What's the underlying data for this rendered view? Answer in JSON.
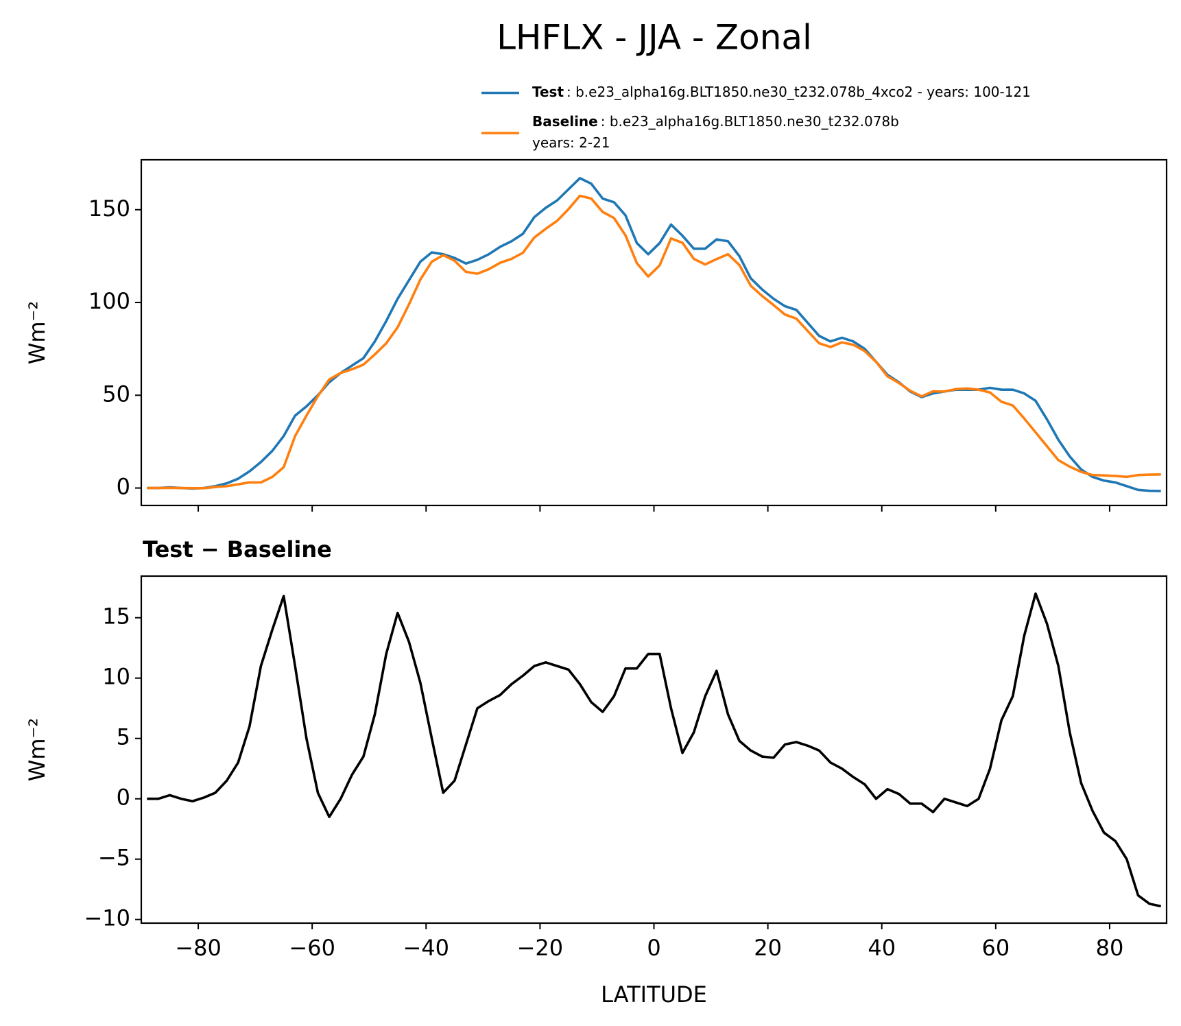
{
  "title": "LHFLX - JJA - Zonal",
  "chart_data": [
    {
      "type": "line",
      "ylabel": "Wm⁻²",
      "x": [
        -89,
        -87,
        -85,
        -83,
        -81,
        -79,
        -77,
        -75,
        -73,
        -71,
        -69,
        -67,
        -65,
        -63,
        -61,
        -59,
        -57,
        -55,
        -53,
        -51,
        -49,
        -47,
        -45,
        -43,
        -41,
        -39,
        -37,
        -35,
        -33,
        -31,
        -29,
        -27,
        -25,
        -23,
        -21,
        -19,
        -17,
        -15,
        -13,
        -11,
        -9,
        -7,
        -5,
        -3,
        -1,
        1,
        3,
        5,
        7,
        9,
        11,
        13,
        15,
        17,
        19,
        21,
        23,
        25,
        27,
        29,
        31,
        33,
        35,
        37,
        39,
        41,
        43,
        45,
        47,
        49,
        51,
        53,
        55,
        57,
        59,
        61,
        63,
        65,
        67,
        69,
        71,
        73,
        75,
        77,
        79,
        81,
        83,
        85,
        87,
        89
      ],
      "xlim": [
        -90,
        90
      ],
      "ylim": [
        -9.4,
        176.9
      ],
      "yticks": [
        0,
        50,
        100,
        150
      ],
      "legend": "upper right",
      "series": [
        {
          "name": "Test",
          "color": "#1f77b4",
          "description": [
            ": b.e23_alpha16g.BLT1850.ne30_t232.078b_4xco2 - years: 100-121"
          ],
          "values": [
            0,
            0,
            0.4,
            0,
            -0.3,
            0,
            1,
            2.5,
            5,
            9,
            14,
            20,
            28,
            39,
            44,
            50,
            57,
            62,
            66,
            70,
            79,
            90,
            102,
            112,
            122,
            127,
            126,
            124,
            121,
            123,
            126,
            130,
            133,
            137,
            146,
            151,
            155,
            161,
            167,
            164,
            156,
            154,
            147,
            132,
            126,
            132,
            142,
            136,
            129,
            129,
            134,
            133,
            125,
            113,
            107,
            102,
            98,
            96,
            89,
            82,
            79,
            81,
            79,
            75,
            68,
            61,
            57,
            52,
            49,
            51,
            52,
            53,
            53,
            53,
            54,
            53,
            53,
            51,
            47,
            37,
            26,
            17,
            10,
            6,
            4,
            3,
            1,
            -1,
            -1.5,
            -1.6
          ]
        },
        {
          "name": "Baseline",
          "color": "#ff7f0e",
          "description": [
            ": b.e23_alpha16g.BLT1850.ne30_t232.078b",
            "years: 2-21"
          ],
          "values": [
            0,
            0,
            0.1,
            0,
            -0.1,
            -0.1,
            0.5,
            1,
            2,
            3,
            3,
            6,
            11.2,
            28,
            39,
            49.5,
            58.5,
            62,
            64,
            66.5,
            72,
            78,
            86.6,
            99,
            112.4,
            122,
            125.5,
            122.5,
            116.5,
            115.5,
            117.9,
            121.4,
            123.5,
            126.8,
            135,
            139.7,
            144,
            150.3,
            157.5,
            156,
            148.8,
            145.5,
            136.2,
            121.2,
            114,
            120,
            134.5,
            132.2,
            123.5,
            120.5,
            123.4,
            126,
            120.2,
            109,
            103.5,
            98.6,
            93.5,
            91.3,
            84.6,
            78,
            76,
            78.5,
            77.2,
            73.8,
            68,
            60.2,
            56.6,
            52.4,
            49.4,
            52.1,
            52,
            53.3,
            53.6,
            53,
            51.5,
            46.5,
            44.5,
            37.5,
            30,
            22.5,
            15,
            11.5,
            8.7,
            7,
            6.8,
            6.5,
            6,
            7,
            7.2,
            7.3
          ]
        }
      ]
    },
    {
      "type": "line",
      "title": "Test − Baseline",
      "ylabel": "Wm⁻²",
      "xlabel": "LATITUDE",
      "x": [
        -89,
        -87,
        -85,
        -83,
        -81,
        -79,
        -77,
        -75,
        -73,
        -71,
        -69,
        -67,
        -65,
        -63,
        -61,
        -59,
        -57,
        -55,
        -53,
        -51,
        -49,
        -47,
        -45,
        -43,
        -41,
        -39,
        -37,
        -35,
        -33,
        -31,
        -29,
        -27,
        -25,
        -23,
        -21,
        -19,
        -17,
        -15,
        -13,
        -11,
        -9,
        -7,
        -5,
        -3,
        -1,
        1,
        3,
        5,
        7,
        9,
        11,
        13,
        15,
        17,
        19,
        21,
        23,
        25,
        27,
        29,
        31,
        33,
        35,
        37,
        39,
        41,
        43,
        45,
        47,
        49,
        51,
        53,
        55,
        57,
        59,
        61,
        63,
        65,
        67,
        69,
        71,
        73,
        75,
        77,
        79,
        81,
        83,
        85,
        87,
        89
      ],
      "xlim": [
        -90,
        90
      ],
      "ylim": [
        -10.3,
        18.45
      ],
      "xticks": [
        {
          "value": -80,
          "label": "−80"
        },
        {
          "value": -60,
          "label": "−60"
        },
        {
          "value": -40,
          "label": "−40"
        },
        {
          "value": -20,
          "label": "−20"
        },
        0,
        20,
        40,
        60,
        80
      ],
      "yticks": [
        {
          "value": -10,
          "label": "−10"
        },
        {
          "value": -5,
          "label": "−5"
        },
        0,
        5,
        10,
        15
      ],
      "series": [
        {
          "color": "#000000",
          "values": [
            0,
            0,
            0.3,
            0,
            -0.2,
            0.1,
            0.5,
            1.5,
            3,
            6,
            11,
            14,
            16.8,
            11,
            5,
            0.5,
            -1.5,
            0,
            2,
            3.5,
            7,
            12,
            15.4,
            13,
            9.6,
            5,
            0.5,
            1.5,
            4.5,
            7.5,
            8.1,
            8.6,
            9.5,
            10.2,
            11,
            11.3,
            11,
            10.7,
            9.5,
            8,
            7.2,
            8.5,
            10.8,
            10.8,
            12,
            12,
            7.5,
            3.8,
            5.5,
            8.5,
            10.6,
            7,
            4.8,
            4,
            3.5,
            3.4,
            4.5,
            4.7,
            4.4,
            4,
            3,
            2.5,
            1.8,
            1.2,
            0,
            0.8,
            0.4,
            -0.4,
            -0.4,
            -1.1,
            0,
            -0.3,
            -0.6,
            0,
            2.5,
            6.5,
            8.5,
            13.5,
            17,
            14.5,
            11,
            5.5,
            1.3,
            -1,
            -2.8,
            -3.5,
            -5,
            -8,
            -8.7,
            -8.9
          ]
        }
      ]
    }
  ]
}
